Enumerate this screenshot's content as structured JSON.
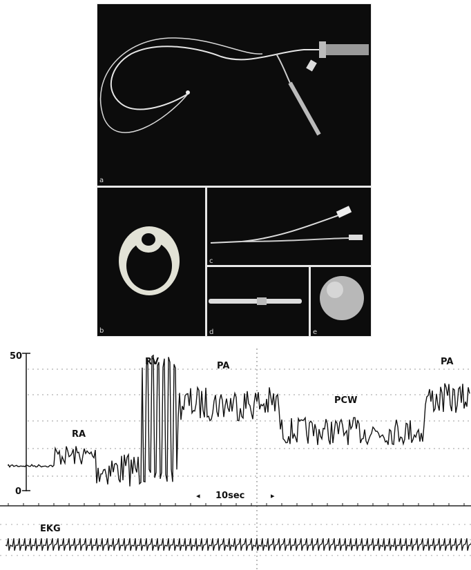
{
  "figure": {
    "panels": [
      "a",
      "b",
      "c",
      "d",
      "e"
    ],
    "trace": {
      "axis_labels": [
        "50",
        "0"
      ],
      "waveform_labels": [
        "RV",
        "PA",
        "RA",
        "PCW",
        "PA"
      ],
      "time_scale": "10sec",
      "ekg_label": "EKG"
    }
  }
}
